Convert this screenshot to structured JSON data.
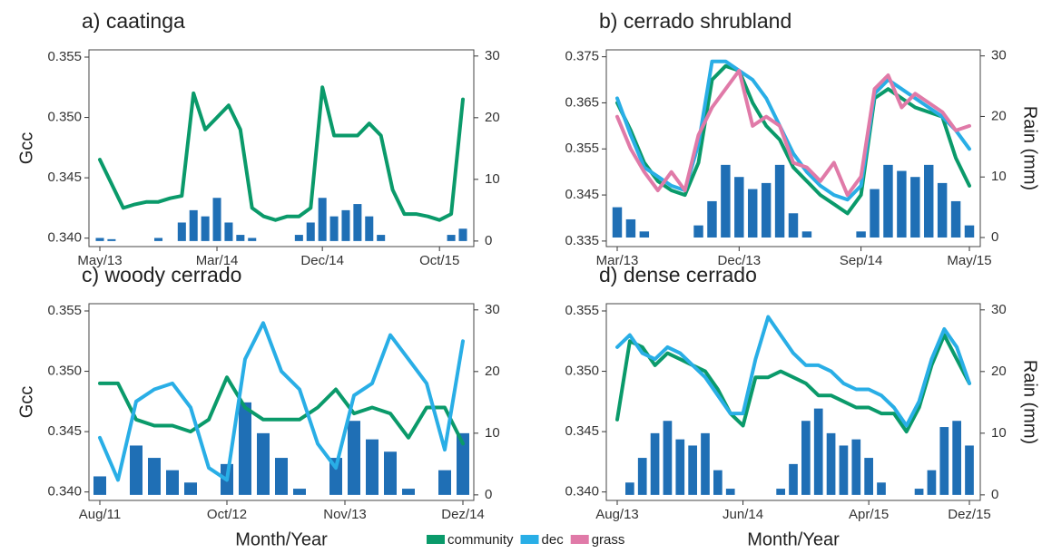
{
  "chart_data": [
    {
      "type": "line",
      "title": "a) caatinga",
      "ylabel": "Gcc",
      "x": [
        "2013-05",
        "2013-06",
        "2013-07",
        "2013-08",
        "2013-09",
        "2013-10",
        "2013-11",
        "2013-12",
        "2014-01",
        "2014-02",
        "2014-03",
        "2014-04",
        "2014-05",
        "2014-06",
        "2014-07",
        "2014-08",
        "2014-09",
        "2014-10",
        "2014-11",
        "2014-12",
        "2015-01",
        "2015-02",
        "2015-03",
        "2015-04",
        "2015-05",
        "2015-06",
        "2015-07",
        "2015-08",
        "2015-09",
        "2015-10",
        "2015-11",
        "2015-12"
      ],
      "xlim": [
        "2013-05",
        "2015-12"
      ],
      "xticks": [
        {
          "value": "2013-05",
          "label": "May/13"
        },
        {
          "value": "2014-03",
          "label": "Mar/14"
        },
        {
          "value": "2014-12",
          "label": "Dec/14"
        },
        {
          "value": "2015-10",
          "label": "Oct/15"
        }
      ],
      "ylim": [
        0.3393,
        0.3556
      ],
      "yticks": [
        {
          "value": 0.34,
          "label": "0.340"
        },
        0.345,
        {
          "value": 0.35,
          "label": "0.350"
        },
        0.355
      ],
      "y2lim": [
        -0.9,
        31
      ],
      "y2ticks": [
        0,
        10,
        20,
        30
      ],
      "series": [
        {
          "axis": "y2",
          "type": "bar",
          "color": "#1f6fb5",
          "values": [
            0.5,
            0.3,
            0,
            0,
            0,
            0.5,
            0,
            3,
            5,
            4,
            7,
            3,
            1,
            0.5,
            0,
            0,
            0,
            1,
            3,
            7,
            4,
            5,
            6,
            4,
            1,
            0,
            0,
            0,
            0,
            0,
            1,
            2
          ]
        },
        {
          "color": "#0a9a6a",
          "values": [
            0.3465,
            0.3445,
            0.3425,
            0.3428,
            0.343,
            0.343,
            0.3433,
            0.3435,
            0.352,
            0.349,
            0.35,
            0.351,
            0.349,
            0.3425,
            0.3418,
            0.3415,
            0.3418,
            0.3418,
            0.3425,
            0.3525,
            0.3485,
            0.3485,
            0.3485,
            0.3495,
            0.3485,
            0.344,
            0.342,
            0.342,
            0.3418,
            0.3415,
            0.342,
            0.3515
          ]
        }
      ]
    },
    {
      "type": "line",
      "title": "b) cerrado shrubland",
      "y2label": "Rain (mm)",
      "x": [
        "2013-03",
        "2013-04",
        "2013-05",
        "2013-06",
        "2013-07",
        "2013-08",
        "2013-09",
        "2013-10",
        "2013-11",
        "2013-12",
        "2014-01",
        "2014-02",
        "2014-03",
        "2014-04",
        "2014-05",
        "2014-06",
        "2014-07",
        "2014-08",
        "2014-09",
        "2014-10",
        "2014-11",
        "2014-12",
        "2015-01",
        "2015-02",
        "2015-03",
        "2015-04",
        "2015-05"
      ],
      "xlim": [
        "2013-03",
        "2015-05"
      ],
      "xticks": [
        {
          "value": "2013-03",
          "label": "Mar/13"
        },
        {
          "value": "2013-12",
          "label": "Dec/13"
        },
        {
          "value": "2014-09",
          "label": "Sep/14"
        },
        {
          "value": "2015-05",
          "label": "May/15"
        }
      ],
      "ylim": [
        0.3338,
        0.3765
      ],
      "yticks": [
        0.335,
        0.345,
        0.355,
        0.365,
        0.375
      ],
      "y2lim": [
        -1.5,
        31
      ],
      "y2ticks": [
        0,
        10,
        20,
        30
      ],
      "series": [
        {
          "axis": "y2",
          "type": "bar",
          "color": "#1f6fb5",
          "values": [
            5,
            3,
            1,
            0,
            0,
            0,
            2,
            6,
            12,
            10,
            8,
            9,
            12,
            4,
            1,
            0,
            0,
            0,
            1,
            8,
            12,
            11,
            10,
            12,
            9,
            6,
            2
          ]
        },
        {
          "name": "community",
          "color": "#0a9a6a",
          "values": [
            0.365,
            0.359,
            0.352,
            0.348,
            0.346,
            0.345,
            0.352,
            0.37,
            0.373,
            0.372,
            0.365,
            0.36,
            0.357,
            0.351,
            0.348,
            0.345,
            0.343,
            0.341,
            0.345,
            0.366,
            0.368,
            0.366,
            0.364,
            0.363,
            0.362,
            0.353,
            0.347
          ]
        },
        {
          "name": "dec",
          "color": "#29aee6",
          "values": [
            0.366,
            0.358,
            0.351,
            0.349,
            0.347,
            0.346,
            0.356,
            0.374,
            0.374,
            0.372,
            0.37,
            0.366,
            0.36,
            0.354,
            0.35,
            0.347,
            0.345,
            0.344,
            0.347,
            0.367,
            0.37,
            0.368,
            0.366,
            0.364,
            0.362,
            0.359,
            0.355
          ]
        },
        {
          "name": "grass",
          "color": "#e07aa8",
          "values": [
            0.362,
            0.355,
            0.35,
            0.346,
            0.35,
            0.346,
            0.358,
            0.364,
            0.368,
            0.372,
            0.36,
            0.362,
            0.36,
            0.352,
            0.351,
            0.348,
            0.352,
            0.345,
            0.349,
            0.368,
            0.371,
            0.364,
            0.367,
            0.365,
            0.363,
            0.359,
            0.36
          ]
        }
      ]
    },
    {
      "type": "line",
      "title": "c) woody cerrado",
      "ylabel": "Gcc",
      "xlabel": "Month/Year",
      "x": [
        "2011-08",
        "2011-10",
        "2011-12",
        "2012-02",
        "2012-04",
        "2012-06",
        "2012-08",
        "2012-10",
        "2012-12",
        "2013-02",
        "2013-04",
        "2013-06",
        "2013-08",
        "2013-10",
        "2013-12",
        "2014-02",
        "2014-04",
        "2014-06",
        "2014-08",
        "2014-10",
        "2014-12"
      ],
      "xlim": [
        "2011-08",
        "2014-12"
      ],
      "xticks": [
        {
          "value": "2011-08",
          "label": "Aug/11"
        },
        {
          "value": "2012-10",
          "label": "Oct/12"
        },
        {
          "value": "2013-11",
          "label": "Nov/13"
        },
        {
          "value": "2014-12",
          "label": "Dez/14"
        }
      ],
      "ylim": [
        0.3393,
        0.3556
      ],
      "yticks": [
        {
          "value": 0.34,
          "label": "0.340"
        },
        0.345,
        {
          "value": 0.35,
          "label": "0.350"
        },
        0.355
      ],
      "y2lim": [
        -0.9,
        31
      ],
      "y2ticks": [
        0,
        10,
        20,
        30
      ],
      "series": [
        {
          "axis": "y2",
          "type": "bar",
          "color": "#1f6fb5",
          "values": [
            3,
            0,
            8,
            6,
            4,
            2,
            0,
            5,
            15,
            10,
            6,
            1,
            0,
            6,
            12,
            9,
            7,
            1,
            0,
            4,
            10
          ]
        },
        {
          "color": "#0a9a6a",
          "values": [
            0.349,
            0.349,
            0.346,
            0.3455,
            0.3455,
            0.345,
            0.346,
            0.3495,
            0.347,
            0.346,
            0.346,
            0.346,
            0.347,
            0.3485,
            0.3465,
            0.347,
            0.3465,
            0.3445,
            0.347,
            0.347,
            0.344
          ]
        },
        {
          "color": "#29aee6",
          "values": [
            0.3445,
            0.341,
            0.3475,
            0.3485,
            0.349,
            0.347,
            0.342,
            0.341,
            0.351,
            0.354,
            0.35,
            0.3485,
            0.344,
            0.342,
            0.348,
            0.349,
            0.353,
            0.351,
            0.349,
            0.3435,
            0.3525
          ]
        }
      ]
    },
    {
      "type": "line",
      "title": "d) dense cerrado",
      "y2label": "Rain (mm)",
      "xlabel": "Month/Year",
      "x": [
        "2013-08",
        "2013-09",
        "2013-10",
        "2013-11",
        "2013-12",
        "2014-01",
        "2014-02",
        "2014-03",
        "2014-04",
        "2014-05",
        "2014-06",
        "2014-07",
        "2014-08",
        "2014-09",
        "2014-10",
        "2014-11",
        "2014-12",
        "2015-01",
        "2015-02",
        "2015-03",
        "2015-04",
        "2015-05",
        "2015-06",
        "2015-07",
        "2015-08",
        "2015-09",
        "2015-10",
        "2015-11",
        "2015-12"
      ],
      "xlim": [
        "2013-08",
        "2015-12"
      ],
      "xticks": [
        {
          "value": "2013-08",
          "label": "Aug/13"
        },
        {
          "value": "2014-06",
          "label": "Jun/14"
        },
        {
          "value": "2015-04",
          "label": "Apr/15"
        },
        {
          "value": "2015-12",
          "label": "Dez/15"
        }
      ],
      "ylim": [
        0.3393,
        0.3556
      ],
      "yticks": [
        {
          "value": 0.34,
          "label": "0.340"
        },
        0.345,
        {
          "value": 0.35,
          "label": "0.350"
        },
        0.355
      ],
      "y2lim": [
        -0.9,
        31
      ],
      "y2ticks": [
        0,
        10,
        20,
        30
      ],
      "series": [
        {
          "axis": "y2",
          "type": "bar",
          "color": "#1f6fb5",
          "values": [
            0,
            2,
            6,
            10,
            12,
            9,
            8,
            10,
            4,
            1,
            0,
            0,
            0,
            1,
            5,
            12,
            14,
            10,
            8,
            9,
            6,
            2,
            0,
            0,
            1,
            4,
            11,
            12,
            8
          ]
        },
        {
          "color": "#0a9a6a",
          "values": [
            0.346,
            0.3525,
            0.352,
            0.3505,
            0.3515,
            0.351,
            0.3505,
            0.35,
            0.3485,
            0.3465,
            0.3455,
            0.3495,
            0.3495,
            0.35,
            0.3495,
            0.349,
            0.348,
            0.348,
            0.3475,
            0.347,
            0.347,
            0.3465,
            0.3465,
            0.345,
            0.347,
            0.3505,
            0.353,
            0.351,
            0.349
          ]
        },
        {
          "color": "#29aee6",
          "values": [
            0.352,
            0.353,
            0.3515,
            0.351,
            0.352,
            0.3515,
            0.3505,
            0.3495,
            0.348,
            0.3465,
            0.3465,
            0.351,
            0.3545,
            0.353,
            0.3515,
            0.3505,
            0.3505,
            0.35,
            0.349,
            0.3485,
            0.3485,
            0.348,
            0.347,
            0.3455,
            0.3475,
            0.351,
            0.3535,
            0.352,
            0.349
          ]
        }
      ]
    }
  ]
}
